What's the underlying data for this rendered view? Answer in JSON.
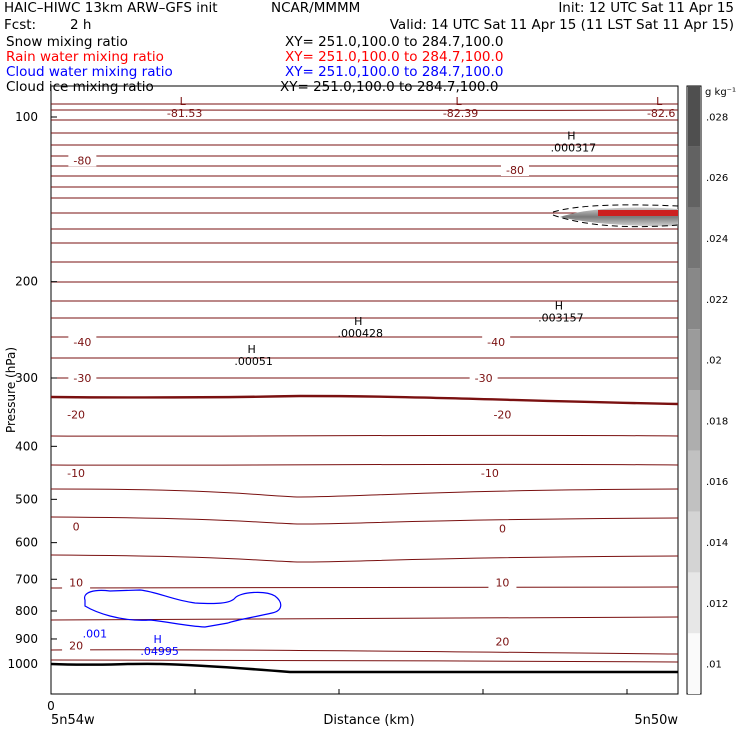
{
  "header": {
    "title": "HAIC–HIWC 13km ARW–GFS init",
    "org": "NCAR/MMMM",
    "init": "Init: 12 UTC Sat 11 Apr 15",
    "fcst_label": "Fcst:",
    "fcst_value": "2 h",
    "valid": "Valid: 14 UTC Sat 11 Apr 15 (11 LST Sat 11 Apr 15)",
    "fields": [
      {
        "name": "Snow mixing ratio",
        "xy": "XY= 251.0,100.0 to 284.7,100.0",
        "color": "#000000"
      },
      {
        "name": "Rain water mixing ratio",
        "xy": "XY= 251.0,100.0 to 284.7,100.0",
        "color": "#ff0000"
      },
      {
        "name": "Cloud water mixing ratio",
        "xy": "XY= 251.0,100.0 to 284.7,100.0",
        "color": "#0000ff"
      },
      {
        "name": "Cloud ice mixing ratio",
        "xy": "XY= 251.0,100.0 to 284.7,100.0",
        "color": "#000000"
      }
    ]
  },
  "chart_data": {
    "type": "cross-section",
    "ylabel": "Pressure (hPa)",
    "xlabel": "Distance (km)",
    "x_start_label": "5n54w",
    "x_end_label": "5n50w",
    "x_zero_tick": "0",
    "y_ticks": [
      100,
      200,
      300,
      400,
      500,
      600,
      700,
      800,
      900,
      1000
    ],
    "y_scale": "log",
    "colorbar": {
      "unit": "g kg⁻¹",
      "ticks": [
        ".01",
        ".012",
        ".014",
        ".016",
        ".018",
        ".02",
        ".022",
        ".024",
        ".026",
        ".028"
      ]
    },
    "temperature_labels": [
      {
        "text": "-80",
        "x": 0.05,
        "p": 120
      },
      {
        "text": "-80",
        "x": 0.74,
        "p": 125
      },
      {
        "text": "-40",
        "x": 0.05,
        "p": 258
      },
      {
        "text": "-40",
        "x": 0.71,
        "p": 258
      },
      {
        "text": "-30",
        "x": 0.05,
        "p": 300
      },
      {
        "text": "-30",
        "x": 0.69,
        "p": 300
      },
      {
        "text": "-20",
        "x": 0.04,
        "p": 350
      },
      {
        "text": "-20",
        "x": 0.72,
        "p": 350
      },
      {
        "text": "-10",
        "x": 0.04,
        "p": 448
      },
      {
        "text": "-10",
        "x": 0.7,
        "p": 448
      },
      {
        "text": "0",
        "x": 0.04,
        "p": 560
      },
      {
        "text": "0",
        "x": 0.72,
        "p": 565
      },
      {
        "text": "10",
        "x": 0.04,
        "p": 710
      },
      {
        "text": "10",
        "x": 0.72,
        "p": 710
      },
      {
        "text": "20",
        "x": 0.04,
        "p": 925
      },
      {
        "text": "20",
        "x": 0.72,
        "p": 910
      }
    ],
    "extrema": [
      {
        "mark": "L",
        "value": "-81.53",
        "x": 0.21,
        "p": 95
      },
      {
        "mark": "L",
        "value": "-82.39",
        "x": 0.65,
        "p": 95
      },
      {
        "mark": "L",
        "value": "-82.6",
        "x": 0.97,
        "p": 95
      },
      {
        "mark": "H",
        "value": ".000317",
        "x": 0.83,
        "p": 110
      },
      {
        "mark": "H",
        "value": ".003157",
        "x": 0.81,
        "p": 225
      },
      {
        "mark": "H",
        "value": ".000428",
        "x": 0.49,
        "p": 240
      },
      {
        "mark": "H",
        "value": ".00051",
        "x": 0.32,
        "p": 270
      },
      {
        "mark": "H",
        "value": ".04995",
        "x": 0.17,
        "p": 915
      }
    ],
    "contour_labels": [
      {
        "text": ".001",
        "x": 0.07,
        "p": 880,
        "color": "#0000ff"
      }
    ]
  }
}
